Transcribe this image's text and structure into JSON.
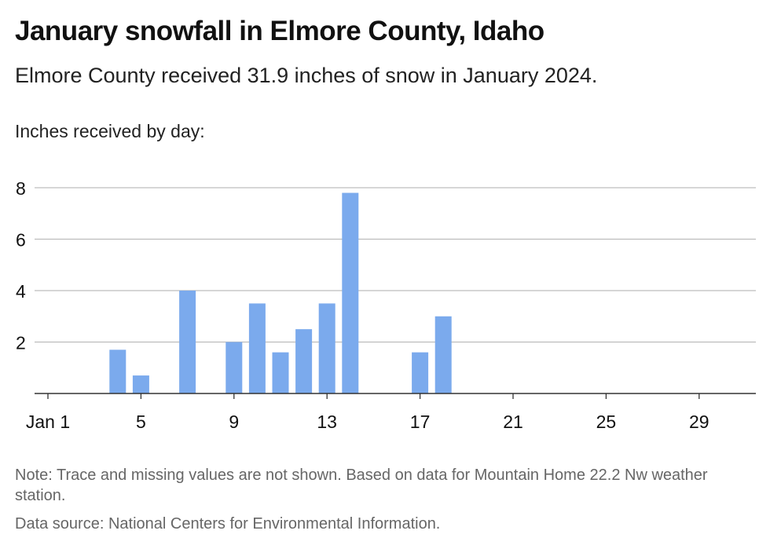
{
  "header": {
    "title": "January snowfall in Elmore County, Idaho",
    "subtitle": "Elmore County received 31.9 inches of snow in January 2024.",
    "axis_caption": "Inches received by day:"
  },
  "footer": {
    "note": "Note: Trace and missing values are not shown. Based on data for Mountain Home 22.2 Nw weather station.",
    "source": "Data source: National Centers for Environmental Information."
  },
  "colors": {
    "bar": "#7baaed",
    "grid": "#bdbdbd",
    "axis": "#333333",
    "tick_text": "#111111"
  },
  "chart_data": {
    "type": "bar",
    "title": "January snowfall in Elmore County, Idaho",
    "ylabel": "Inches received by day:",
    "xlabel": "",
    "ylim": [
      0,
      8
    ],
    "yticks": [
      2,
      4,
      6,
      8
    ],
    "xlim": [
      1,
      32
    ],
    "x_tick_values": [
      1,
      5,
      9,
      13,
      17,
      21,
      25,
      29
    ],
    "x_tick_labels": [
      "Jan 1",
      "5",
      "9",
      "13",
      "17",
      "21",
      "25",
      "29"
    ],
    "grid": true,
    "bars": [
      {
        "day": 4,
        "value": 1.7
      },
      {
        "day": 5,
        "value": 0.7
      },
      {
        "day": 7,
        "value": 4.0
      },
      {
        "day": 9,
        "value": 2.0
      },
      {
        "day": 10,
        "value": 3.5
      },
      {
        "day": 11,
        "value": 1.6
      },
      {
        "day": 12,
        "value": 2.5
      },
      {
        "day": 13,
        "value": 3.5
      },
      {
        "day": 14,
        "value": 7.8
      },
      {
        "day": 17,
        "value": 1.6
      },
      {
        "day": 18,
        "value": 3.0
      }
    ]
  }
}
